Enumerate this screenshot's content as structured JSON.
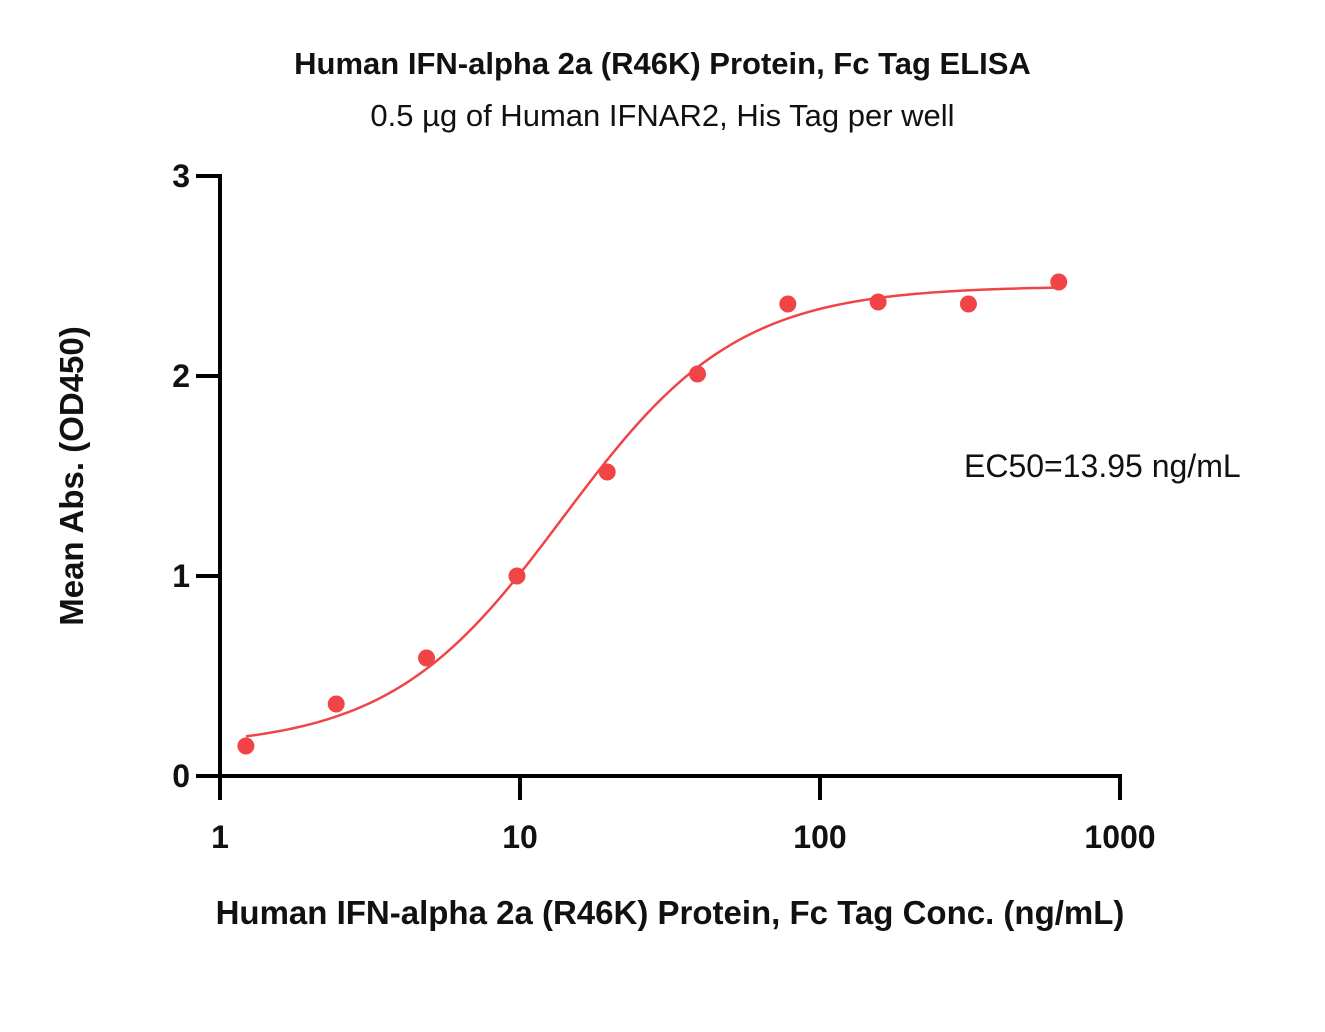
{
  "chart_data": {
    "type": "scatter",
    "title": "Human IFN-alpha 2a (R46K) Protein, Fc Tag ELISA",
    "subtitle": "0.5 µg of Human IFNAR2, His Tag per well",
    "xlabel": "Human IFN-alpha 2a (R46K) Protein, Fc Tag Conc. (ng/mL)",
    "ylabel": "Mean Abs. (OD450)",
    "xscale": "log",
    "xlim": [
      1,
      1000
    ],
    "ylim": [
      0,
      3
    ],
    "x_ticks": [
      "1",
      "10",
      "100",
      "1000"
    ],
    "y_ticks": [
      "0",
      "1",
      "2",
      "3"
    ],
    "grid": false,
    "colors": {
      "series": "#f04446",
      "axis": "#000000"
    },
    "series": [
      {
        "x": [
          1.22,
          2.44,
          4.88,
          9.77,
          19.53,
          39.06,
          78.13,
          156.25,
          312.5,
          625
        ],
        "values": [
          0.15,
          0.36,
          0.59,
          1.0,
          1.52,
          2.01,
          2.36,
          2.37,
          2.36,
          2.47
        ]
      }
    ],
    "fit": {
      "model": "4PL",
      "bottom": 0.14,
      "top": 2.45,
      "ec50": 13.95,
      "hill": 1.5
    },
    "annotations": [
      "EC50=13.95 ng/mL"
    ]
  }
}
